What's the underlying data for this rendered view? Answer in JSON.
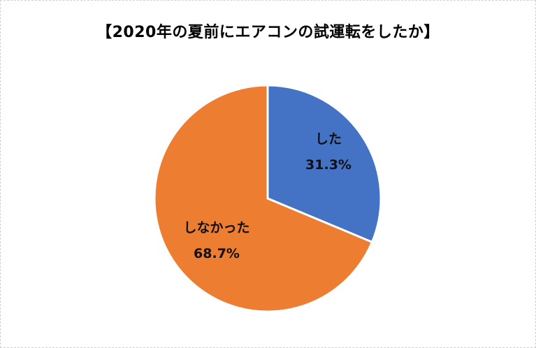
{
  "chart_data": {
    "type": "pie",
    "title": "【2020年の夏前にエアコンの試運転をしたか】",
    "categories": [
      "した",
      "しなかった"
    ],
    "values": [
      31.3,
      68.7
    ],
    "unit": "%",
    "colors": [
      "#4472C4",
      "#ED7D31"
    ],
    "labels": [
      "した\n31.3%",
      "しなかった\n68.7%"
    ],
    "start_angle": "12 o'clock, clockwise",
    "legend": "none"
  },
  "slices": [
    {
      "name": "した",
      "value_label": "31.3%",
      "color": "#4472C4"
    },
    {
      "name": "しなかった",
      "value_label": "68.7%",
      "color": "#ED7D31"
    }
  ]
}
